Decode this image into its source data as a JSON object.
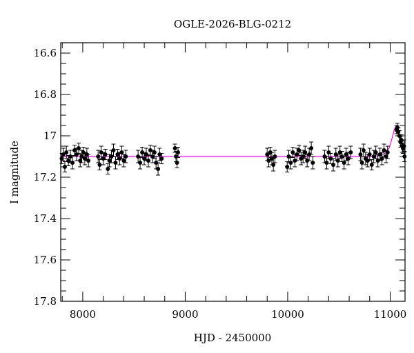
{
  "chart_data": {
    "type": "scatter",
    "title": "OGLE-2026-BLG-0212",
    "xlabel": "HJD - 2450000",
    "ylabel": "I magnitude",
    "xlim": [
      7785,
      11145
    ],
    "ylim": [
      17.8,
      16.55
    ],
    "y_inverted": true,
    "x_ticks": [
      "8000",
      "9000",
      "10000",
      "11000"
    ],
    "y_ticks": [
      "16.6",
      "16.8",
      "17",
      "17.2",
      "17.4",
      "17.6",
      "17.8"
    ],
    "grid": false,
    "colors": {
      "points": "#000000",
      "model": "#ff00ff"
    },
    "points": [
      [
        7795,
        17.11,
        0.025
      ],
      [
        7810,
        17.09,
        0.03
      ],
      [
        7825,
        17.15,
        0.025
      ],
      [
        7840,
        17.08,
        0.03
      ],
      [
        7860,
        17.12,
        0.025
      ],
      [
        7880,
        17.1,
        0.03
      ],
      [
        7900,
        17.13,
        0.03
      ],
      [
        7920,
        17.07,
        0.025
      ],
      [
        7940,
        17.09,
        0.03
      ],
      [
        7960,
        17.06,
        0.025
      ],
      [
        7975,
        17.12,
        0.03
      ],
      [
        7990,
        17.1,
        0.03
      ],
      [
        8005,
        17.08,
        0.025
      ],
      [
        8020,
        17.11,
        0.03
      ],
      [
        8040,
        17.09,
        0.03
      ],
      [
        8055,
        17.12,
        0.03
      ],
      [
        8150,
        17.1,
        0.03
      ],
      [
        8165,
        17.14,
        0.025
      ],
      [
        8180,
        17.08,
        0.03
      ],
      [
        8200,
        17.11,
        0.03
      ],
      [
        8220,
        17.09,
        0.025
      ],
      [
        8245,
        17.16,
        0.025
      ],
      [
        8260,
        17.12,
        0.03
      ],
      [
        8280,
        17.1,
        0.03
      ],
      [
        8300,
        17.07,
        0.03
      ],
      [
        8320,
        17.13,
        0.03
      ],
      [
        8340,
        17.09,
        0.025
      ],
      [
        8360,
        17.11,
        0.03
      ],
      [
        8380,
        17.08,
        0.03
      ],
      [
        8400,
        17.12,
        0.03
      ],
      [
        8420,
        17.1,
        0.03
      ],
      [
        8540,
        17.1,
        0.03
      ],
      [
        8560,
        17.13,
        0.03
      ],
      [
        8580,
        17.08,
        0.025
      ],
      [
        8600,
        17.11,
        0.03
      ],
      [
        8620,
        17.09,
        0.03
      ],
      [
        8640,
        17.12,
        0.03
      ],
      [
        8660,
        17.07,
        0.025
      ],
      [
        8680,
        17.1,
        0.03
      ],
      [
        8700,
        17.08,
        0.03
      ],
      [
        8715,
        17.13,
        0.03
      ],
      [
        8735,
        17.16,
        0.03
      ],
      [
        8750,
        17.09,
        0.03
      ],
      [
        8770,
        17.11,
        0.025
      ],
      [
        8900,
        17.06,
        0.02
      ],
      [
        8910,
        17.1,
        0.025
      ],
      [
        8920,
        17.13,
        0.025
      ],
      [
        8930,
        17.08,
        0.025
      ],
      [
        9800,
        17.09,
        0.03
      ],
      [
        9815,
        17.12,
        0.03
      ],
      [
        9830,
        17.08,
        0.025
      ],
      [
        9845,
        17.11,
        0.03
      ],
      [
        9860,
        17.14,
        0.03
      ],
      [
        9875,
        17.1,
        0.03
      ],
      [
        9995,
        17.15,
        0.025
      ],
      [
        10010,
        17.1,
        0.03
      ],
      [
        10030,
        17.13,
        0.03
      ],
      [
        10050,
        17.08,
        0.025
      ],
      [
        10070,
        17.12,
        0.03
      ],
      [
        10090,
        17.09,
        0.03
      ],
      [
        10110,
        17.07,
        0.025
      ],
      [
        10130,
        17.11,
        0.03
      ],
      [
        10150,
        17.1,
        0.03
      ],
      [
        10170,
        17.08,
        0.03
      ],
      [
        10190,
        17.12,
        0.03
      ],
      [
        10210,
        17.09,
        0.03
      ],
      [
        10230,
        17.06,
        0.03
      ],
      [
        10245,
        17.13,
        0.03
      ],
      [
        10360,
        17.1,
        0.03
      ],
      [
        10380,
        17.13,
        0.03
      ],
      [
        10400,
        17.08,
        0.03
      ],
      [
        10420,
        17.11,
        0.025
      ],
      [
        10445,
        17.14,
        0.03
      ],
      [
        10470,
        17.09,
        0.03
      ],
      [
        10490,
        17.12,
        0.03
      ],
      [
        10510,
        17.08,
        0.03
      ],
      [
        10530,
        17.1,
        0.025
      ],
      [
        10550,
        17.13,
        0.03
      ],
      [
        10570,
        17.09,
        0.03
      ],
      [
        10590,
        17.11,
        0.03
      ],
      [
        10615,
        17.08,
        0.03
      ],
      [
        10710,
        17.09,
        0.03
      ],
      [
        10725,
        17.13,
        0.03
      ],
      [
        10740,
        17.07,
        0.03
      ],
      [
        10760,
        17.11,
        0.03
      ],
      [
        10780,
        17.12,
        0.03
      ],
      [
        10800,
        17.09,
        0.03
      ],
      [
        10820,
        17.14,
        0.025
      ],
      [
        10840,
        17.1,
        0.03
      ],
      [
        10860,
        17.08,
        0.03
      ],
      [
        10880,
        17.12,
        0.03
      ],
      [
        10900,
        17.09,
        0.03
      ],
      [
        10920,
        17.11,
        0.03
      ],
      [
        10940,
        17.07,
        0.03
      ],
      [
        10960,
        17.1,
        0.03
      ],
      [
        10975,
        17.08,
        0.03
      ],
      [
        11062,
        16.97,
        0.02
      ],
      [
        11070,
        16.96,
        0.02
      ],
      [
        11080,
        16.98,
        0.02
      ],
      [
        11090,
        17.0,
        0.025
      ],
      [
        11100,
        17.03,
        0.025
      ],
      [
        11110,
        17.02,
        0.025
      ],
      [
        11118,
        17.05,
        0.03
      ],
      [
        11125,
        17.06,
        0.025
      ],
      [
        11135,
        17.05,
        0.03
      ],
      [
        11140,
        17.1,
        0.025
      ]
    ],
    "model": [
      [
        7785,
        17.1
      ],
      [
        10800,
        17.1
      ],
      [
        10900,
        17.095
      ],
      [
        10950,
        17.085
      ],
      [
        10990,
        17.06
      ],
      [
        11020,
        17.01
      ],
      [
        11040,
        16.97
      ],
      [
        11055,
        16.955
      ],
      [
        11070,
        16.97
      ],
      [
        11090,
        17.01
      ],
      [
        11110,
        17.04
      ],
      [
        11145,
        17.07
      ]
    ]
  }
}
